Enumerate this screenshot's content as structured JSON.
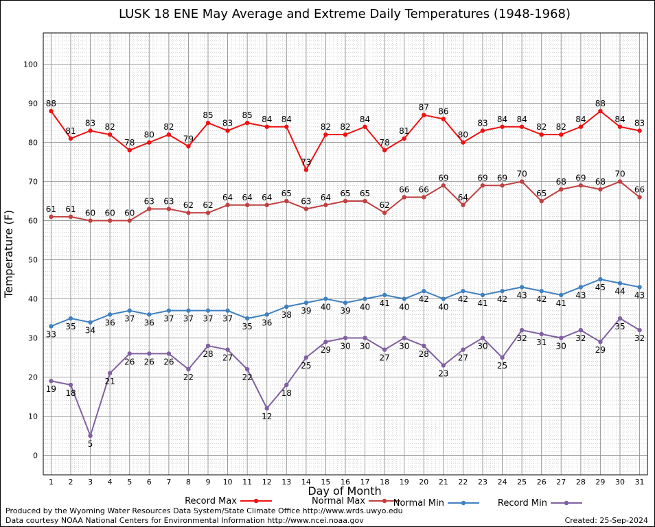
{
  "chart_data": {
    "type": "line",
    "title": "LUSK 18 ENE May Average and Extreme Daily Temperatures (1948-1968)",
    "xlabel": "Day of Month",
    "ylabel": "Temperature (F)",
    "ylim": [
      -5,
      108
    ],
    "xlim": [
      0.6,
      31.4
    ],
    "x": [
      1,
      2,
      3,
      4,
      5,
      6,
      7,
      8,
      9,
      10,
      11,
      12,
      13,
      14,
      15,
      16,
      17,
      18,
      19,
      20,
      21,
      22,
      23,
      24,
      25,
      26,
      27,
      28,
      29,
      30,
      31
    ],
    "yticks": [
      0,
      10,
      20,
      30,
      40,
      50,
      60,
      70,
      80,
      90,
      100
    ],
    "grid": true,
    "legend_position": "bottom",
    "series": [
      {
        "name": "Record Max",
        "color": "#ee1111",
        "label_position": "above",
        "values": [
          88,
          81,
          83,
          82,
          78,
          80,
          82,
          79,
          85,
          83,
          85,
          84,
          84,
          73,
          82,
          82,
          84,
          78,
          81,
          87,
          86,
          80,
          83,
          84,
          84,
          82,
          82,
          84,
          88,
          84,
          83
        ]
      },
      {
        "name": "Normal Max",
        "color": "#c04040",
        "label_position": "above",
        "values": [
          61,
          61,
          60,
          60,
          60,
          63,
          63,
          62,
          62,
          64,
          64,
          64,
          65,
          63,
          64,
          65,
          65,
          62,
          66,
          66,
          69,
          64,
          69,
          69,
          70,
          65,
          68,
          69,
          68,
          70,
          66
        ]
      },
      {
        "name": "Normal Min",
        "color": "#4080c0",
        "label_position": "below",
        "values": [
          33,
          35,
          34,
          36,
          37,
          36,
          37,
          37,
          37,
          37,
          35,
          36,
          38,
          39,
          40,
          39,
          40,
          41,
          40,
          42,
          40,
          42,
          41,
          42,
          43,
          42,
          41,
          43,
          45,
          44,
          43
        ]
      },
      {
        "name": "Record Min",
        "color": "#8060a0",
        "label_position": "below",
        "values": [
          19,
          18,
          5,
          21,
          26,
          26,
          26,
          22,
          28,
          27,
          22,
          12,
          18,
          25,
          29,
          30,
          30,
          27,
          30,
          28,
          23,
          27,
          30,
          25,
          32,
          31,
          30,
          32,
          29,
          35,
          32
        ]
      }
    ]
  },
  "footer": {
    "credit1": "Produced by the Wyoming Water Resources Data System/State Climate Office http://www.wrds.uwyo.edu",
    "credit2": "Data courtesy NOAA National Centers for Environmental Information http://www.ncei.noaa.gov",
    "created": "Created:  25-Sep-2024"
  }
}
